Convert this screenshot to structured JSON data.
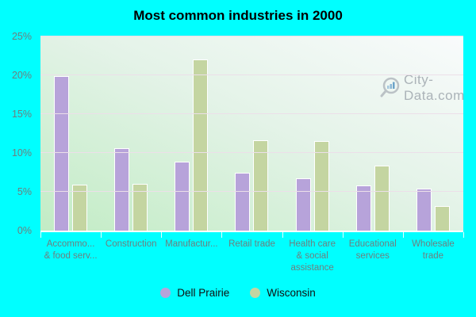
{
  "title": "Most common industries in 2000",
  "watermark": {
    "text": "City-Data.com"
  },
  "colors": {
    "background": "#00ffff",
    "plot_gradient_bottom_left": "#c2ecc5",
    "plot_gradient_top_right": "#f9fbfc",
    "gridline": "#ecdfe9",
    "axis_text": "#6e7e7e",
    "dell_prairie": "#b7a3da",
    "wisconsin": "#c4d5a1"
  },
  "chart_data": {
    "type": "bar",
    "title": "Most common industries in 2000",
    "categories": [
      {
        "lines": [
          "Accommo...",
          "& food serv..."
        ]
      },
      {
        "lines": [
          "Construction"
        ]
      },
      {
        "lines": [
          "Manufactur..."
        ]
      },
      {
        "lines": [
          "Retail trade"
        ]
      },
      {
        "lines": [
          "Health care",
          "& social",
          "assistance"
        ]
      },
      {
        "lines": [
          "Educational",
          "services"
        ]
      },
      {
        "lines": [
          "Wholesale",
          "trade"
        ]
      }
    ],
    "series": [
      {
        "name": "Dell Prairie",
        "color": "#b7a3da",
        "values": [
          19.9,
          10.6,
          8.9,
          7.4,
          6.7,
          5.8,
          5.4
        ]
      },
      {
        "name": "Wisconsin",
        "color": "#c4d5a1",
        "values": [
          5.9,
          6.0,
          22.0,
          11.6,
          11.5,
          8.4,
          3.2
        ]
      }
    ],
    "xlabel": "",
    "ylabel": "",
    "yticks": [
      "25%",
      "20%",
      "15%",
      "10%",
      "5%",
      "0%"
    ],
    "ylim": [
      0,
      25
    ],
    "grid": true,
    "legend_position": "bottom"
  }
}
